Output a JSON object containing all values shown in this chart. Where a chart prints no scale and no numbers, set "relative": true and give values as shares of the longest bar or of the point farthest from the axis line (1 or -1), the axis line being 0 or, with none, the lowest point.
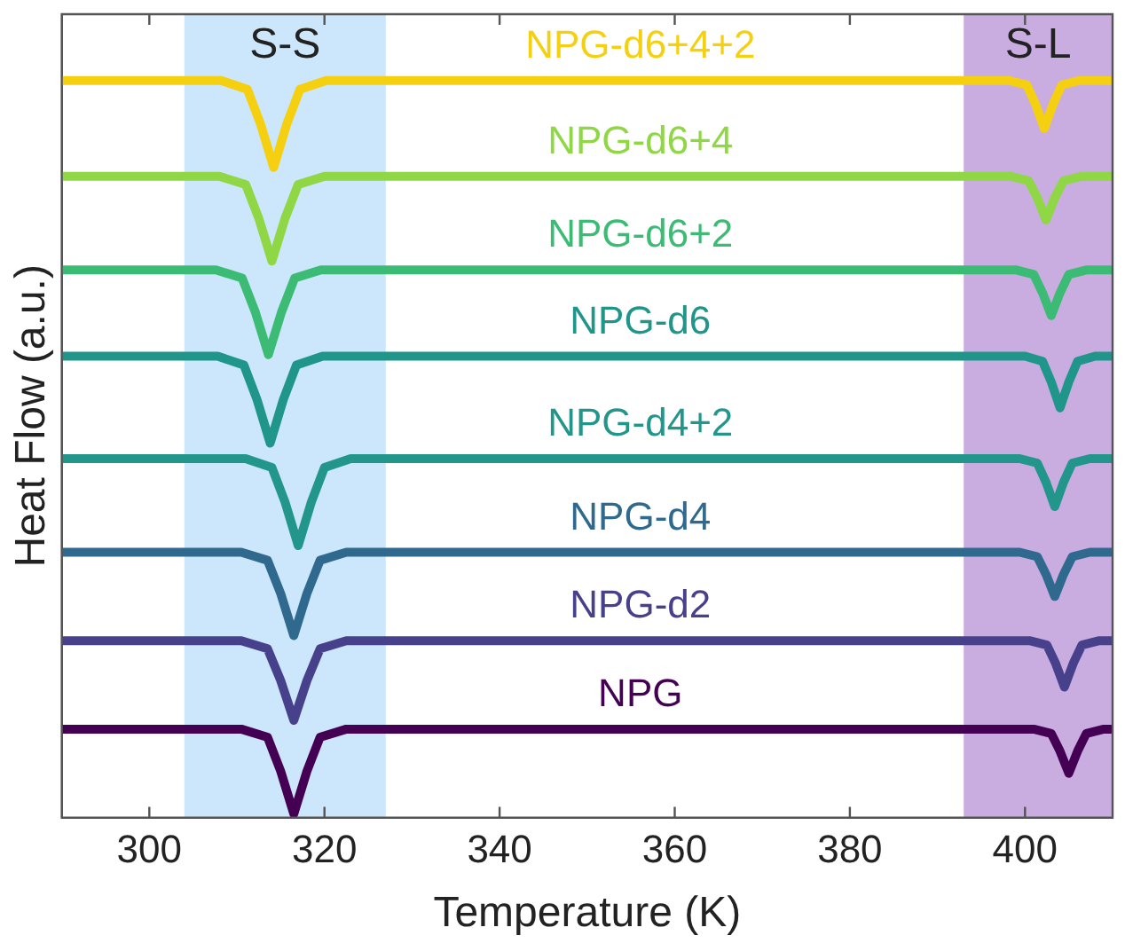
{
  "chart_data": {
    "type": "line",
    "xlabel": "Temperature (K)",
    "ylabel": "Heat Flow (a.u.)",
    "relative": true,
    "xlim": [
      290,
      410
    ],
    "xticks": [
      300,
      320,
      340,
      360,
      380,
      400
    ],
    "legend": false,
    "grid": false,
    "marker": "none",
    "line_style": "solid",
    "bands": [
      {
        "axis": "x",
        "from": 304,
        "to": 327,
        "label": "S-S",
        "color": "#cce6fb"
      },
      {
        "axis": "x",
        "from": 393,
        "to": 410,
        "label": "S-L",
        "color": "#c9ace0"
      }
    ],
    "series": [
      {
        "name": "NPG-d6+4+2",
        "color": "#f5d010",
        "x": [
          290,
          308.2,
          311.2,
          312.7,
          314.2,
          315.7,
          317.2,
          320.2,
          398.2,
          400.2,
          401.2,
          402.2,
          403.2,
          404.2,
          406.2,
          410
        ],
        "values": [
          1,
          1,
          0.988,
          0.941,
          0.882,
          0.941,
          0.988,
          1,
          1,
          0.994,
          0.968,
          0.935,
          0.968,
          0.994,
          1,
          1
        ]
      },
      {
        "name": "NPG-d6+4",
        "color": "#8fd744",
        "x": [
          290,
          308,
          311,
          312.5,
          314,
          315.5,
          317,
          320,
          398.4,
          400.4,
          401.4,
          402.4,
          403.4,
          404.4,
          406.4,
          410
        ],
        "values": [
          0.87,
          0.87,
          0.859,
          0.813,
          0.755,
          0.813,
          0.859,
          0.87,
          0.87,
          0.864,
          0.841,
          0.811,
          0.841,
          0.864,
          0.87,
          0.87
        ]
      },
      {
        "name": "NPG-d6+2",
        "color": "#3cbb75",
        "x": [
          290,
          307.6,
          310.6,
          312.1,
          313.6,
          315.1,
          316.6,
          319.6,
          399,
          401,
          402,
          403,
          404,
          405,
          407,
          410
        ],
        "values": [
          0.743,
          0.743,
          0.732,
          0.686,
          0.628,
          0.686,
          0.732,
          0.743,
          0.743,
          0.737,
          0.712,
          0.681,
          0.712,
          0.737,
          0.743,
          0.743
        ]
      },
      {
        "name": "NPG-d6",
        "color": "#20968a",
        "x": [
          290,
          307.8,
          310.8,
          312.3,
          313.8,
          315.3,
          316.8,
          319.8,
          400,
          402,
          403,
          404,
          405,
          406,
          408,
          410
        ],
        "values": [
          0.626,
          0.626,
          0.614,
          0.567,
          0.508,
          0.567,
          0.614,
          0.626,
          0.626,
          0.619,
          0.591,
          0.556,
          0.591,
          0.619,
          0.626,
          0.626
        ]
      },
      {
        "name": "NPG-d4+2",
        "color": "#23968b",
        "x": [
          290,
          311,
          314,
          315.5,
          317,
          318.5,
          320,
          323,
          399.4,
          401.4,
          402.4,
          403.4,
          404.4,
          405.4,
          407.4,
          410
        ],
        "values": [
          0.487,
          0.487,
          0.475,
          0.428,
          0.369,
          0.428,
          0.475,
          0.487,
          0.487,
          0.481,
          0.455,
          0.422,
          0.455,
          0.481,
          0.487,
          0.487
        ]
      },
      {
        "name": "NPG-d4",
        "color": "#2f6a8e",
        "x": [
          290,
          310.5,
          313.5,
          315,
          316.5,
          318,
          319.5,
          322.5,
          399.4,
          401.4,
          402.4,
          403.4,
          404.4,
          405.4,
          407.4,
          410
        ],
        "values": [
          0.36,
          0.36,
          0.349,
          0.304,
          0.247,
          0.304,
          0.349,
          0.36,
          0.36,
          0.354,
          0.33,
          0.3,
          0.33,
          0.354,
          0.36,
          0.36
        ]
      },
      {
        "name": "NPG-d2",
        "color": "#47408a",
        "x": [
          290,
          310.5,
          313.5,
          315,
          316.5,
          318,
          319.5,
          322.5,
          400.5,
          402.5,
          403.5,
          404.5,
          405.5,
          406.5,
          408.5,
          410
        ],
        "values": [
          0.24,
          0.24,
          0.229,
          0.186,
          0.132,
          0.186,
          0.229,
          0.24,
          0.24,
          0.234,
          0.209,
          0.177,
          0.209,
          0.234,
          0.24,
          0.24
        ]
      },
      {
        "name": "NPG",
        "color": "#440154",
        "x": [
          290,
          310.5,
          313.5,
          315,
          316.5,
          318,
          319.5,
          322.5,
          401,
          403,
          404,
          405,
          406,
          407,
          409,
          410
        ],
        "values": [
          0.12,
          0.12,
          0.109,
          0.063,
          0.005,
          0.063,
          0.109,
          0.12,
          0.12,
          0.114,
          0.09,
          0.06,
          0.09,
          0.114,
          0.12,
          0.12
        ]
      }
    ]
  }
}
